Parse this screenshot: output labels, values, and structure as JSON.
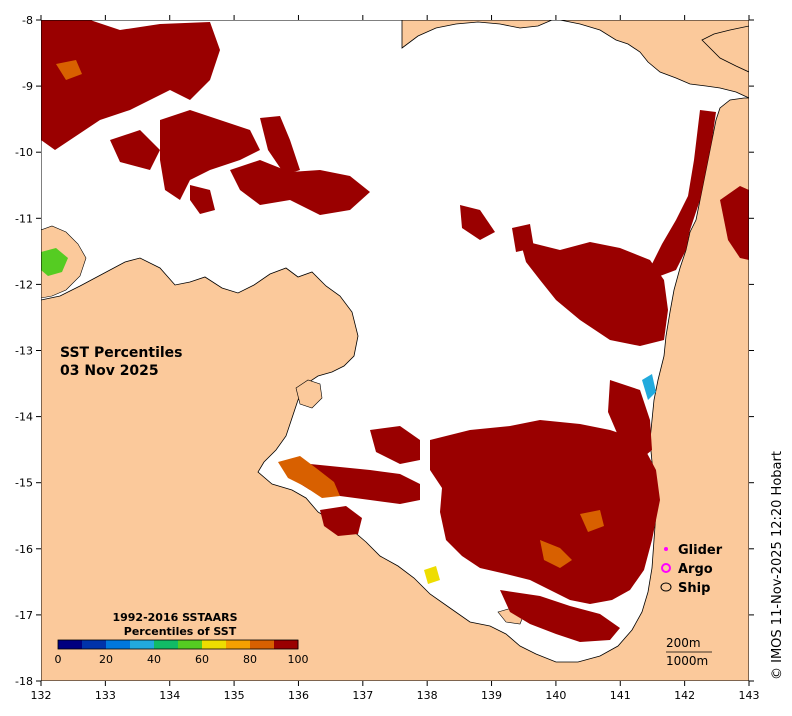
{
  "map": {
    "title_line1": "SST Percentiles",
    "title_line2": "03 Nov 2025",
    "lon_ticks": [
      "132",
      "133",
      "134",
      "135",
      "136",
      "137",
      "138",
      "139",
      "140",
      "141",
      "142",
      "143"
    ],
    "lat_ticks": [
      "-8",
      "-9",
      "-10",
      "-11",
      "-12",
      "-13",
      "-14",
      "-15",
      "-16",
      "-17",
      "-18"
    ],
    "lon_range": [
      132,
      143
    ],
    "lat_range": [
      -18,
      -8
    ],
    "land_color": "#fbc99b",
    "sea_color": "#ffffff",
    "anomaly_color": "#9a0000"
  },
  "colorbar": {
    "title_line1": "1992-2016 SSTAARS",
    "title_line2": "Percentiles of SST",
    "tick_labels": [
      "0",
      "20",
      "40",
      "60",
      "80",
      "100"
    ],
    "colors": [
      "#000080",
      "#0033aa",
      "#0077dd",
      "#22aadd",
      "#11bb66",
      "#55cc22",
      "#eedd00",
      "#f5a000",
      "#d86000",
      "#9a0000"
    ]
  },
  "markers": {
    "glider": "Glider",
    "argo": "Argo",
    "ship": "Ship"
  },
  "depth_labels": {
    "d200": "200m",
    "d1000": "1000m"
  },
  "credit": "© IMOS 11-Nov-2025 12:20 Hobart"
}
